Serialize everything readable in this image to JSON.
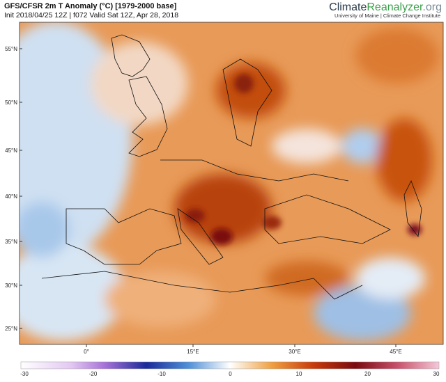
{
  "header": {
    "title": "GFS/CFSR 2m T Anomaly (°C) [1979-2000 base]",
    "subtitle": "Init 2018/04/25 12Z | f072 Valid Sat 12Z, Apr 28, 2018"
  },
  "logo": {
    "parts": [
      "Climate",
      "Reanalyzer",
      ".org"
    ],
    "tagline": "University of Maine | Climate Change Institute"
  },
  "map": {
    "latitude_labels": [
      "55°N",
      "50°N",
      "45°N",
      "40°N",
      "35°N",
      "30°N",
      "25°N"
    ],
    "longitude_labels": [
      "0°",
      "15°E",
      "30°E",
      "45°E"
    ]
  },
  "colorbar": {
    "ticks": [
      -30,
      -20,
      -10,
      0,
      10,
      20,
      30
    ]
  }
}
